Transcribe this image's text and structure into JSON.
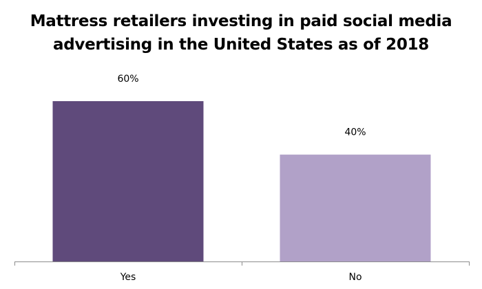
{
  "chart_data": {
    "type": "bar",
    "title_lines": [
      "Mattress retailers investing in paid social media",
      "advertising in the United States as of 2018"
    ],
    "categories": [
      "Yes",
      "No"
    ],
    "values": [
      60,
      40
    ],
    "data_labels": [
      "60%",
      "40%"
    ],
    "colors": [
      "#5f4a7b",
      "#b1a1c8"
    ],
    "xlabel": "",
    "ylabel": "",
    "ylim": [
      0,
      100
    ],
    "grid": false,
    "unit": "%"
  }
}
